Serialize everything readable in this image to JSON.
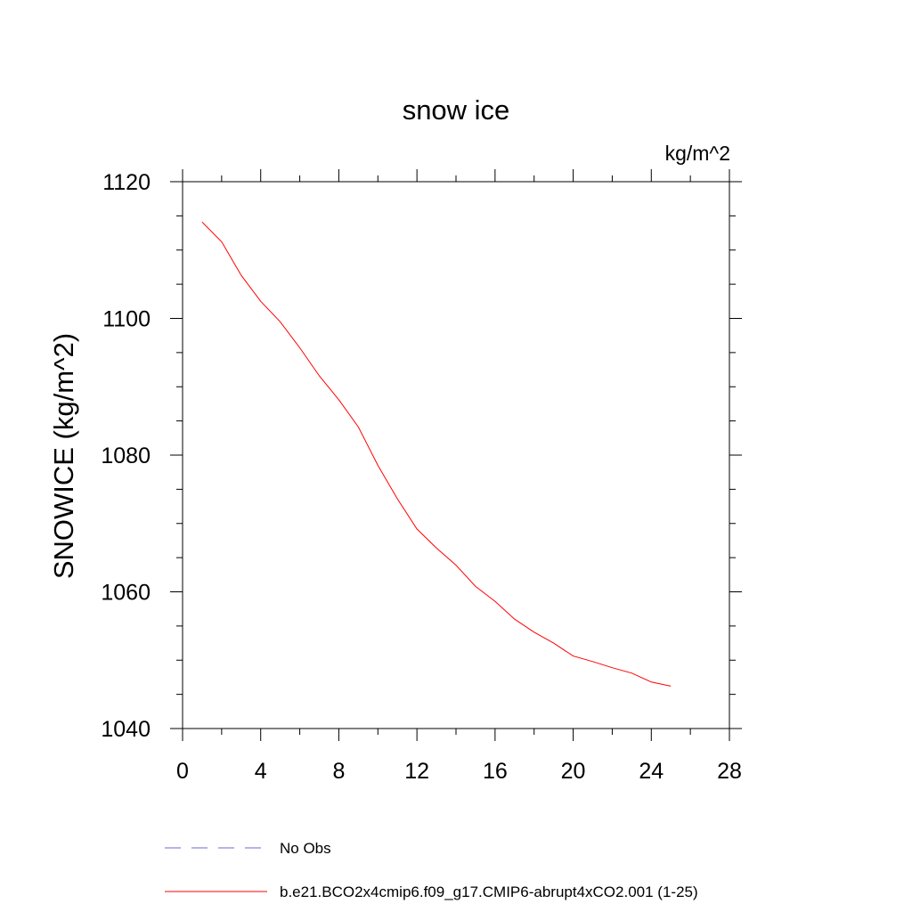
{
  "chart_data": {
    "type": "line",
    "title": "snow ice",
    "units": "kg/m^2",
    "xlabel": "",
    "ylabel": "SNOWICE  (kg/m^2)",
    "xlim": [
      0,
      28
    ],
    "ylim": [
      1040,
      1120
    ],
    "xticks": [
      0,
      4,
      8,
      12,
      16,
      20,
      24,
      28
    ],
    "yticks": [
      1040,
      1060,
      1080,
      1100,
      1120
    ],
    "x_minor_step": 2,
    "y_minor_step": 5,
    "grid": false,
    "legend_position": "bottom",
    "series": [
      {
        "name": "b.e21.BCO2x4cmip6.f09_g17.CMIP6-abrupt4xCO2.001 (1-25)",
        "color": "#ff0000",
        "dash": "solid",
        "x": [
          1,
          2,
          3,
          4,
          5,
          6,
          7,
          8,
          9,
          10,
          11,
          12,
          13,
          14,
          15,
          16,
          17,
          18,
          19,
          20,
          21,
          22,
          23,
          24,
          25
        ],
        "y": [
          1114.1,
          1111.2,
          1106.3,
          1102.5,
          1099.5,
          1095.7,
          1091.6,
          1088.1,
          1084.1,
          1078.5,
          1073.6,
          1069.2,
          1066.4,
          1063.9,
          1060.8,
          1058.6,
          1056.0,
          1054.1,
          1052.5,
          1050.6,
          1049.8,
          1048.9,
          1048.1,
          1046.8,
          1046.2
        ]
      }
    ],
    "legend": [
      {
        "label": "No Obs",
        "color": "#6a6ad8",
        "dash": "dashed"
      },
      {
        "label": "b.e21.BCO2x4cmip6.f09_g17.CMIP6-abrupt4xCO2.001 (1-25)",
        "color": "#ff0000",
        "dash": "solid"
      }
    ]
  }
}
